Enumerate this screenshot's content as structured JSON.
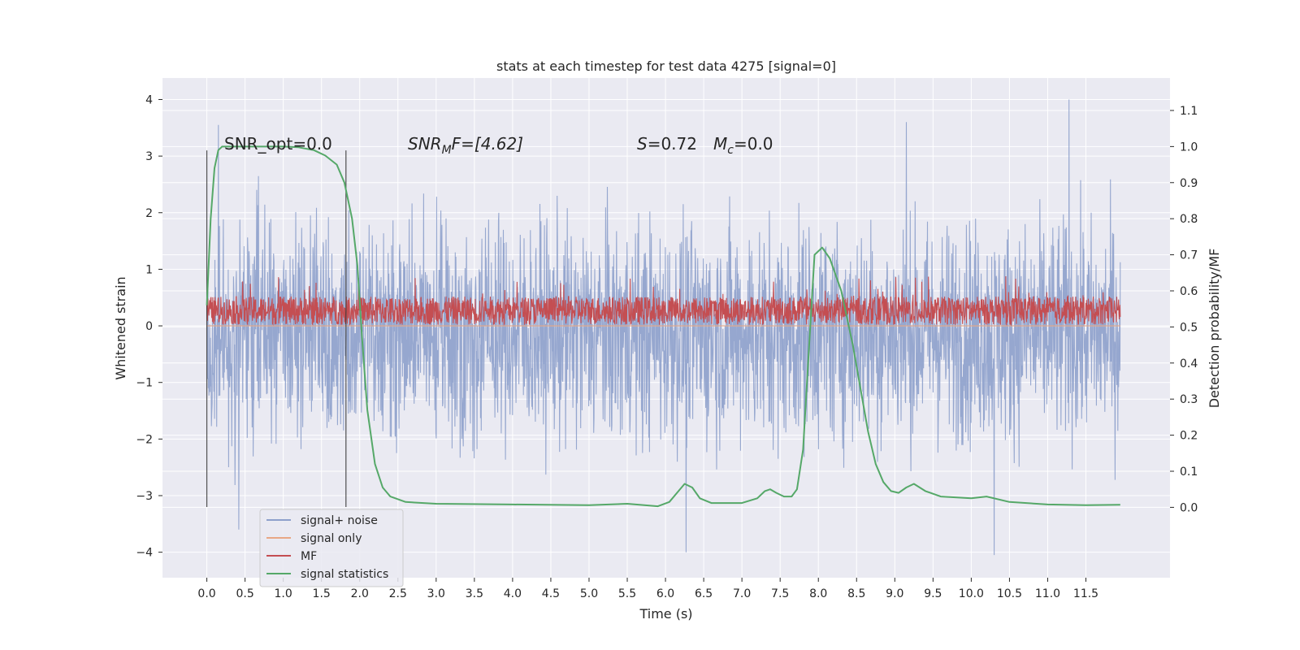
{
  "chart_data": {
    "type": "line",
    "title": "stats at each timestep for test data 4275 [signal=0]",
    "xlabel": "Time (s)",
    "ylabel_left": "Whitened strain",
    "ylabel_right": "Detection probability/MF",
    "xlim": [
      -0.58,
      12.6
    ],
    "ylim_left": [
      -4.45,
      4.38
    ],
    "ylim_right": [
      -0.195,
      1.19
    ],
    "x_ticks": [
      "0.0",
      "0.5",
      "1.0",
      "1.5",
      "2.0",
      "2.5",
      "3.0",
      "3.5",
      "4.0",
      "4.5",
      "5.0",
      "5.5",
      "6.0",
      "6.5",
      "7.0",
      "7.5",
      "8.0",
      "8.5",
      "9.0",
      "9.5",
      "10.0",
      "10.5",
      "11.0",
      "11.5"
    ],
    "y_ticks_left": [
      "4",
      "3",
      "2",
      "1",
      "0",
      "−1",
      "−2",
      "−3",
      "−4"
    ],
    "y_ticks_right": [
      "1.1",
      "1.0",
      "0.9",
      "0.8",
      "0.7",
      "0.6",
      "0.5",
      "0.4",
      "0.3",
      "0.2",
      "0.1",
      "0.0"
    ],
    "grid": true,
    "legend_position": "lower-left",
    "annotations": {
      "snr_opt": "SNR_opt=0.0",
      "snr_mf_name": "SNR",
      "snr_mf_sub": "M",
      "snr_mf_rest": "F=[4.62]",
      "s_name": "S",
      "s_value": "=0.72",
      "mc_name": "M",
      "mc_sub": "c",
      "mc_value": "=0.0"
    },
    "vertical_lines_x": [
      0.0,
      1.82
    ],
    "series": [
      {
        "name": "signal+ noise",
        "axis": "left",
        "color": "#8da0cb",
        "x_range": [
          0.0,
          11.95
        ],
        "band_upper": 1.2,
        "band_lower": -1.45,
        "spike_max": 4.0,
        "spike_min": -4.1,
        "notable_spikes": [
          [
            0.15,
            3.55
          ],
          [
            0.42,
            -3.6
          ],
          [
            6.27,
            -4.0
          ],
          [
            10.3,
            -4.05
          ],
          [
            11.28,
            4.0
          ],
          [
            9.15,
            3.6
          ]
        ]
      },
      {
        "name": "signal only",
        "axis": "left",
        "color": "#e8a785",
        "x": [
          0.0,
          11.95
        ],
        "y": [
          0.0,
          0.0
        ]
      },
      {
        "name": "MF",
        "axis": "left",
        "color": "#c44e52",
        "x_range": [
          0.0,
          11.95
        ],
        "band_upper": 0.52,
        "band_lower": 0.02,
        "spike_max": 0.9
      },
      {
        "name": "signal statistics",
        "axis": "right",
        "color": "#55a868",
        "x": [
          0.0,
          0.05,
          0.1,
          0.15,
          0.2,
          0.3,
          0.5,
          0.8,
          1.0,
          1.2,
          1.4,
          1.55,
          1.7,
          1.8,
          1.9,
          1.97,
          2.03,
          2.1,
          2.2,
          2.3,
          2.4,
          2.6,
          3.0,
          4.0,
          5.0,
          5.5,
          5.9,
          6.05,
          6.15,
          6.25,
          6.35,
          6.45,
          6.6,
          7.0,
          7.2,
          7.3,
          7.37,
          7.45,
          7.55,
          7.65,
          7.72,
          7.8,
          7.88,
          7.95,
          8.05,
          8.15,
          8.3,
          8.45,
          8.55,
          8.65,
          8.75,
          8.85,
          8.95,
          9.05,
          9.15,
          9.25,
          9.4,
          9.6,
          10.0,
          10.2,
          10.5,
          11.0,
          11.5,
          11.95
        ],
        "y": [
          0.56,
          0.8,
          0.94,
          0.99,
          1.0,
          1.0,
          1.0,
          1.0,
          1.0,
          0.998,
          0.99,
          0.975,
          0.95,
          0.9,
          0.8,
          0.67,
          0.47,
          0.27,
          0.12,
          0.055,
          0.03,
          0.015,
          0.01,
          0.008,
          0.006,
          0.01,
          0.003,
          0.015,
          0.04,
          0.065,
          0.055,
          0.025,
          0.012,
          0.012,
          0.025,
          0.045,
          0.05,
          0.04,
          0.03,
          0.03,
          0.05,
          0.16,
          0.45,
          0.7,
          0.72,
          0.69,
          0.6,
          0.45,
          0.33,
          0.21,
          0.12,
          0.07,
          0.045,
          0.04,
          0.055,
          0.065,
          0.045,
          0.03,
          0.025,
          0.03,
          0.015,
          0.008,
          0.006,
          0.007
        ]
      }
    ]
  }
}
